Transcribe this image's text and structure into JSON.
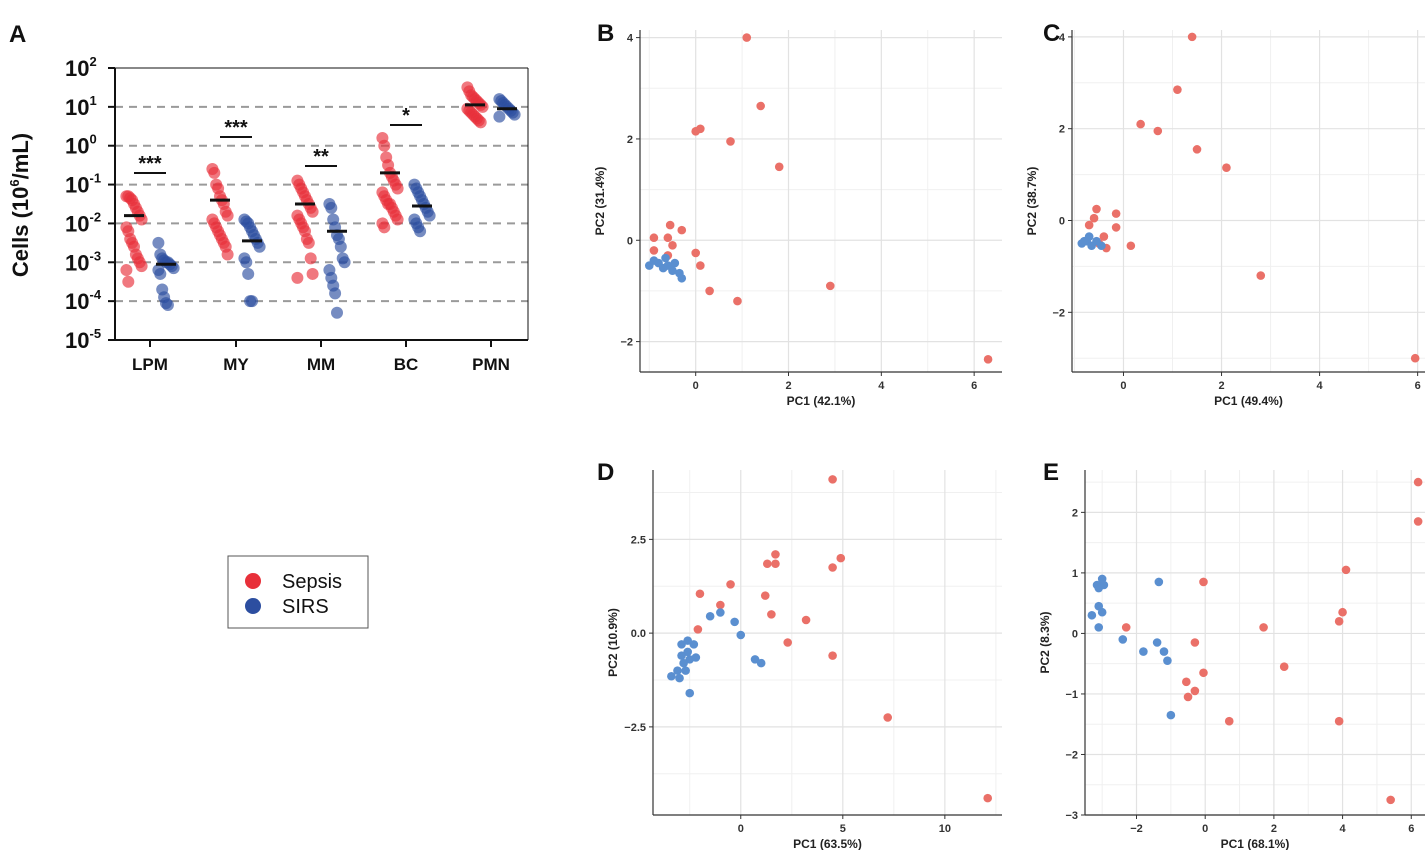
{
  "chart_data": [
    {
      "panel": "A",
      "type": "scatter",
      "ylabel": "Cells (10",
      "ylabel_sup": "6",
      "ylabel_tail": "/mL)",
      "yscale": "log",
      "ylim_exp": [
        -5,
        2
      ],
      "yticks": [
        {
          "base": "10",
          "exp": "-5"
        },
        {
          "base": "10",
          "exp": "-4"
        },
        {
          "base": "10",
          "exp": "-3"
        },
        {
          "base": "10",
          "exp": "-2"
        },
        {
          "base": "10",
          "exp": "-1"
        },
        {
          "base": "10",
          "exp": "0"
        },
        {
          "base": "10",
          "exp": "1"
        },
        {
          "base": "10",
          "exp": "2"
        }
      ],
      "categories": [
        "LPM",
        "MY",
        "MM",
        "BC",
        "PMN"
      ],
      "significance": [
        "***",
        "***",
        "**",
        "*",
        ""
      ],
      "groups": [
        {
          "name": "Sepsis",
          "color": "#e8303a",
          "log_values": [
            [
              -1.3,
              -1.3,
              -1.35,
              -1.4,
              -1.5,
              -1.6,
              -1.7,
              -1.8,
              -1.9,
              -2.1,
              -2.2,
              -2.4,
              -2.5,
              -2.6,
              -2.8,
              -2.9,
              -3.0,
              -3.1,
              -3.2,
              -3.5
            ],
            [
              -0.6,
              -0.7,
              -1.0,
              -1.1,
              -1.3,
              -1.4,
              -1.5,
              -1.7,
              -1.8,
              -1.9,
              -2.0,
              -2.1,
              -2.2,
              -2.3,
              -2.4,
              -2.5,
              -2.6,
              -2.8
            ],
            [
              -0.9,
              -1.0,
              -1.1,
              -1.2,
              -1.3,
              -1.4,
              -1.5,
              -1.6,
              -1.7,
              -1.8,
              -1.9,
              -2.0,
              -2.1,
              -2.2,
              -2.4,
              -2.5,
              -2.9,
              -3.3,
              -3.4
            ],
            [
              0.2,
              0.0,
              -0.3,
              -0.5,
              -0.7,
              -0.8,
              -0.9,
              -1.0,
              -1.1,
              -1.2,
              -1.3,
              -1.4,
              -1.5,
              -1.5,
              -1.6,
              -1.7,
              -1.8,
              -1.9,
              -2.0,
              -2.1
            ],
            [
              1.5,
              1.4,
              1.3,
              1.25,
              1.2,
              1.15,
              1.1,
              1.05,
              1.0,
              0.95,
              0.9,
              0.85,
              0.8,
              0.75,
              0.7,
              0.65,
              0.6
            ]
          ],
          "medians": [
            -1.8,
            -1.4,
            -1.5,
            -0.7,
            1.05
          ]
        },
        {
          "name": "SIRS",
          "color": "#2c4ea0",
          "log_values": [
            [
              -2.5,
              -2.8,
              -2.9,
              -2.95,
              -3.0,
              -3.0,
              -3.05,
              -3.1,
              -3.15,
              -3.2,
              -3.3,
              -3.7,
              -3.9,
              -4.05,
              -4.1
            ],
            [
              -1.9,
              -1.95,
              -2.0,
              -2.1,
              -2.2,
              -2.3,
              -2.4,
              -2.5,
              -2.6,
              -2.9,
              -3.0,
              -3.3,
              -4.0,
              -4.0
            ],
            [
              -1.5,
              -1.6,
              -1.9,
              -2.1,
              -2.3,
              -2.4,
              -2.6,
              -2.9,
              -3.0,
              -3.2,
              -3.4,
              -3.6,
              -3.8,
              -4.3
            ],
            [
              -1.0,
              -1.1,
              -1.2,
              -1.3,
              -1.4,
              -1.5,
              -1.6,
              -1.7,
              -1.8,
              -1.9,
              -2.0,
              -2.1,
              -2.2
            ],
            [
              1.2,
              1.15,
              1.1,
              1.05,
              1.0,
              0.95,
              0.9,
              0.85,
              0.8,
              0.75
            ]
          ],
          "medians": [
            -3.05,
            -2.45,
            -2.2,
            -1.55,
            0.95
          ]
        }
      ],
      "legend": [
        {
          "label": "Sepsis",
          "color": "#e8303a"
        },
        {
          "label": "SIRS",
          "color": "#2c4ea0"
        }
      ]
    },
    {
      "panel": "B",
      "type": "scatter",
      "xlabel": "PC1 (42.1%)",
      "ylabel": "PC2 (31.4%)",
      "xlim": [
        -1.2,
        6.6
      ],
      "ylim": [
        -2.6,
        4.15
      ],
      "xticks": [
        0,
        2,
        4,
        6
      ],
      "yticks": [
        -2,
        0,
        2,
        4
      ],
      "xtick_labels": [
        "0",
        "2",
        "4",
        "6"
      ],
      "ytick_labels": [
        "−2",
        "0",
        "2",
        "4"
      ],
      "xminor": [
        -1,
        1,
        3,
        5
      ],
      "yminor": [
        -1,
        1,
        3
      ],
      "series": [
        {
          "name": "Sepsis",
          "color": "#ea7068",
          "points": [
            [
              1.1,
              4.0
            ],
            [
              1.4,
              2.65
            ],
            [
              0.0,
              2.15
            ],
            [
              0.1,
              2.2
            ],
            [
              0.75,
              1.95
            ],
            [
              1.8,
              1.45
            ],
            [
              -0.55,
              0.3
            ],
            [
              -0.6,
              0.05
            ],
            [
              -0.9,
              0.05
            ],
            [
              -0.3,
              0.2
            ],
            [
              -0.5,
              -0.1
            ],
            [
              -0.9,
              -0.2
            ],
            [
              -0.6,
              -0.3
            ],
            [
              0.0,
              -0.25
            ],
            [
              0.1,
              -0.5
            ],
            [
              0.3,
              -1.0
            ],
            [
              0.9,
              -1.2
            ],
            [
              2.9,
              -0.9
            ],
            [
              6.3,
              -2.35
            ]
          ]
        },
        {
          "name": "SIRS",
          "color": "#5a8fd0",
          "points": [
            [
              -1.0,
              -0.5
            ],
            [
              -0.8,
              -0.45
            ],
            [
              -0.7,
              -0.55
            ],
            [
              -0.6,
              -0.5
            ],
            [
              -0.5,
              -0.6
            ],
            [
              -0.45,
              -0.45
            ],
            [
              -0.35,
              -0.65
            ],
            [
              -0.3,
              -0.75
            ],
            [
              -0.9,
              -0.4
            ],
            [
              -0.65,
              -0.35
            ]
          ]
        }
      ]
    },
    {
      "panel": "C",
      "type": "scatter",
      "xlabel": "PC1 (49.4%)",
      "ylabel": "PC2 (38.7%)",
      "xlim": [
        -1.05,
        6.15
      ],
      "ylim": [
        -3.3,
        4.15
      ],
      "xticks": [
        0,
        2,
        4,
        6
      ],
      "yticks": [
        -2,
        0,
        2,
        4
      ],
      "xtick_labels": [
        "0",
        "2",
        "4",
        "6"
      ],
      "ytick_labels": [
        "−2",
        "0",
        "2",
        "4"
      ],
      "xminor": [
        -1,
        1,
        3,
        5
      ],
      "yminor": [
        -3,
        -1,
        1,
        3
      ],
      "series": [
        {
          "name": "Sepsis",
          "color": "#ea7068",
          "points": [
            [
              1.4,
              4.0
            ],
            [
              1.1,
              2.85
            ],
            [
              0.35,
              2.1
            ],
            [
              0.7,
              1.95
            ],
            [
              1.5,
              1.55
            ],
            [
              2.1,
              1.15
            ],
            [
              -0.55,
              0.25
            ],
            [
              -0.6,
              0.05
            ],
            [
              -0.15,
              0.15
            ],
            [
              -0.7,
              -0.1
            ],
            [
              -0.15,
              -0.15
            ],
            [
              -0.4,
              -0.35
            ],
            [
              0.15,
              -0.55
            ],
            [
              -0.35,
              -0.6
            ],
            [
              -0.5,
              -0.5
            ],
            [
              2.8,
              -1.2
            ],
            [
              5.95,
              -3.0
            ]
          ]
        },
        {
          "name": "SIRS",
          "color": "#5a8fd0",
          "points": [
            [
              -0.85,
              -0.5
            ],
            [
              -0.75,
              -0.45
            ],
            [
              -0.65,
              -0.55
            ],
            [
              -0.55,
              -0.45
            ],
            [
              -0.45,
              -0.55
            ],
            [
              -0.7,
              -0.35
            ],
            [
              -0.8,
              -0.45
            ]
          ]
        }
      ]
    },
    {
      "panel": "D",
      "type": "scatter",
      "xlabel": "PC1 (63.5%)",
      "ylabel": "PC2 (10.9%)",
      "xlim": [
        -4.3,
        12.8
      ],
      "ylim": [
        -4.85,
        4.35
      ],
      "xticks": [
        0,
        5,
        10
      ],
      "yticks": [
        -2.5,
        0,
        2.5
      ],
      "xtick_labels": [
        "0",
        "5",
        "10"
      ],
      "ytick_labels": [
        "−2.5",
        "0.0",
        "2.5"
      ],
      "xminor": [
        -2.5,
        2.5,
        7.5,
        12.5
      ],
      "yminor": [
        -3.75,
        -1.25,
        1.25,
        3.75
      ],
      "series": [
        {
          "name": "Sepsis",
          "color": "#ea7068",
          "points": [
            [
              4.5,
              4.1
            ],
            [
              1.7,
              2.1
            ],
            [
              1.3,
              1.85
            ],
            [
              1.7,
              1.85
            ],
            [
              4.9,
              2.0
            ],
            [
              4.5,
              1.75
            ],
            [
              -0.5,
              1.3
            ],
            [
              -2.0,
              1.05
            ],
            [
              -1.0,
              0.75
            ],
            [
              1.2,
              1.0
            ],
            [
              1.5,
              0.5
            ],
            [
              3.2,
              0.35
            ],
            [
              -2.1,
              0.1
            ],
            [
              2.3,
              -0.25
            ],
            [
              4.5,
              -0.6
            ],
            [
              7.2,
              -2.25
            ],
            [
              12.1,
              -4.4
            ]
          ]
        },
        {
          "name": "SIRS",
          "color": "#5a8fd0",
          "points": [
            [
              -1.0,
              0.55
            ],
            [
              -0.3,
              0.3
            ],
            [
              0.0,
              -0.05
            ],
            [
              -1.5,
              0.45
            ],
            [
              -2.3,
              -0.3
            ],
            [
              -2.6,
              -0.5
            ],
            [
              -2.9,
              -0.3
            ],
            [
              -2.5,
              -0.7
            ],
            [
              -2.8,
              -0.8
            ],
            [
              -2.2,
              -0.65
            ],
            [
              -3.1,
              -1.0
            ],
            [
              -2.7,
              -1.0
            ],
            [
              -3.0,
              -1.2
            ],
            [
              -3.4,
              -1.15
            ],
            [
              -2.5,
              -1.6
            ],
            [
              0.7,
              -0.7
            ],
            [
              1.0,
              -0.8
            ],
            [
              -2.6,
              -0.2
            ],
            [
              -2.9,
              -0.6
            ]
          ]
        }
      ]
    },
    {
      "panel": "E",
      "type": "scatter",
      "xlabel": "PC1 (68.1%)",
      "ylabel": "PC2 (8.3%)",
      "xlim": [
        -3.5,
        6.4
      ],
      "ylim": [
        -3.0,
        2.7
      ],
      "xticks": [
        -2,
        0,
        2,
        4,
        6
      ],
      "yticks": [
        -3,
        -2,
        -1,
        0,
        1,
        2
      ],
      "xtick_labels": [
        "−2",
        "0",
        "2",
        "4",
        "6"
      ],
      "ytick_labels": [
        "−3",
        "−2",
        "−1",
        "0",
        "1",
        "2"
      ],
      "xminor": [
        -3,
        -1,
        1,
        3,
        5
      ],
      "yminor": [
        -2.5,
        -1.5,
        -0.5,
        0.5,
        1.5,
        2.5
      ],
      "series": [
        {
          "name": "Sepsis",
          "color": "#ea7068",
          "points": [
            [
              6.2,
              2.5
            ],
            [
              6.2,
              1.85
            ],
            [
              4.1,
              1.05
            ],
            [
              4.0,
              0.35
            ],
            [
              3.9,
              0.2
            ],
            [
              1.7,
              0.1
            ],
            [
              2.3,
              -0.55
            ],
            [
              -0.05,
              0.85
            ],
            [
              -2.3,
              0.1
            ],
            [
              -0.3,
              -0.15
            ],
            [
              -0.05,
              -0.65
            ],
            [
              -0.3,
              -0.95
            ],
            [
              -0.55,
              -0.8
            ],
            [
              -0.5,
              -1.05
            ],
            [
              0.7,
              -1.45
            ],
            [
              3.9,
              -1.45
            ],
            [
              5.4,
              -2.75
            ]
          ]
        },
        {
          "name": "SIRS",
          "color": "#5a8fd0",
          "points": [
            [
              -3.0,
              0.9
            ],
            [
              -3.15,
              0.8
            ],
            [
              -2.95,
              0.8
            ],
            [
              -3.1,
              0.75
            ],
            [
              -3.1,
              0.45
            ],
            [
              -3.0,
              0.35
            ],
            [
              -3.3,
              0.3
            ],
            [
              -3.1,
              0.1
            ],
            [
              -1.35,
              0.85
            ],
            [
              -2.4,
              -0.1
            ],
            [
              -1.8,
              -0.3
            ],
            [
              -1.4,
              -0.15
            ],
            [
              -1.2,
              -0.3
            ],
            [
              -1.1,
              -0.45
            ],
            [
              -1.0,
              -1.35
            ]
          ]
        }
      ]
    }
  ]
}
